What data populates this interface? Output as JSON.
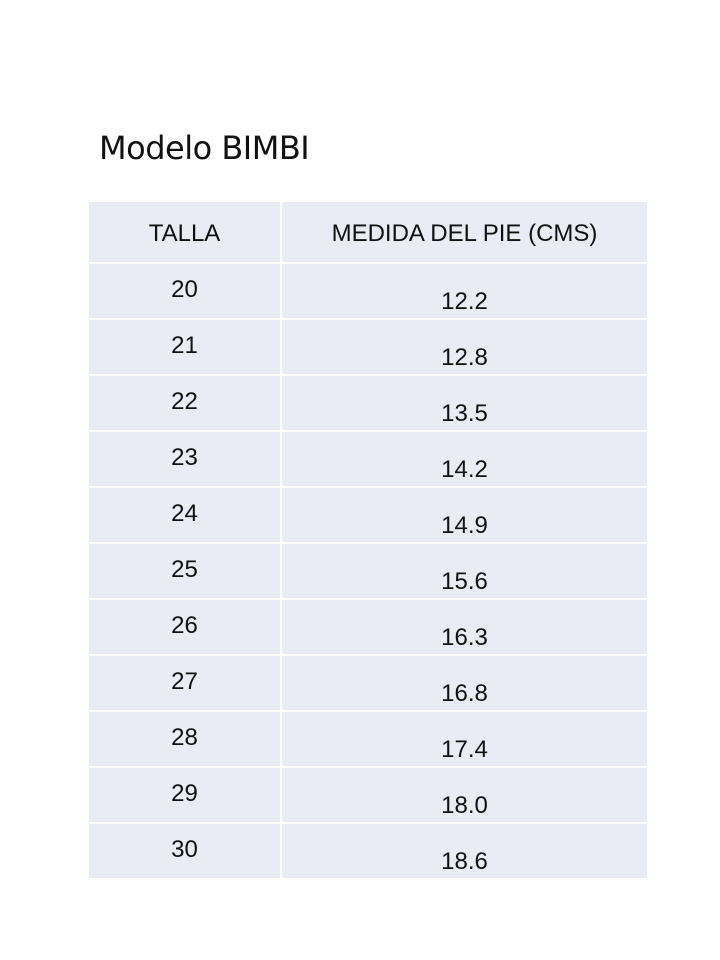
{
  "title": "Modelo BIMBI",
  "table": {
    "headers": [
      "TALLA",
      "MEDIDA DEL PIE (CMS)"
    ],
    "rows": [
      [
        "20",
        "12.2"
      ],
      [
        "21",
        "12.8"
      ],
      [
        "22",
        "13.5"
      ],
      [
        "23",
        "14.2"
      ],
      [
        "24",
        "14.9"
      ],
      [
        "25",
        "15.6"
      ],
      [
        "26",
        "16.3"
      ],
      [
        "27",
        "16.8"
      ],
      [
        "28",
        "17.4"
      ],
      [
        "29",
        "18.0"
      ],
      [
        "30",
        "18.6"
      ]
    ]
  }
}
